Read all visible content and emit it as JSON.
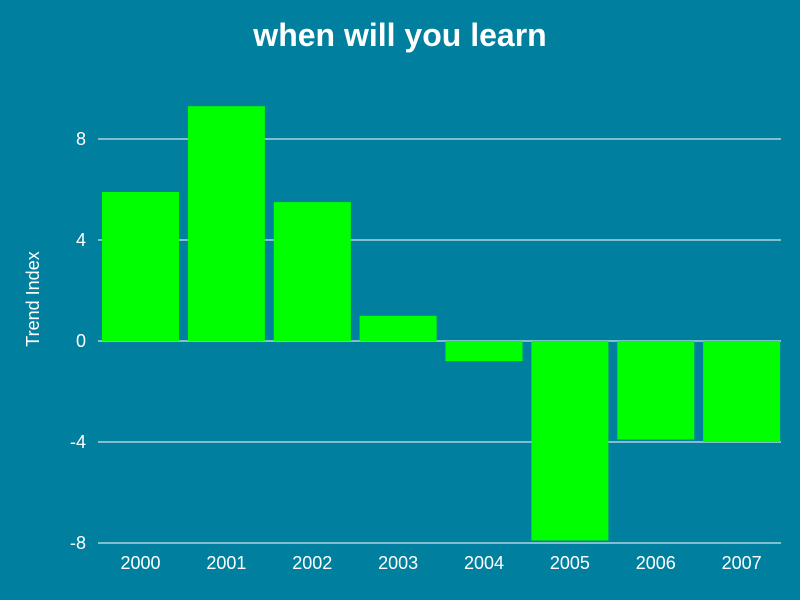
{
  "chart_data": {
    "type": "bar",
    "title": "when will you learn",
    "xlabel": "",
    "ylabel": "Trend Index",
    "categories": [
      "2000",
      "2001",
      "2002",
      "2003",
      "2004",
      "2005",
      "2006",
      "2007"
    ],
    "values": [
      5.9,
      9.3,
      5.5,
      1.0,
      -0.8,
      -7.9,
      -3.9,
      -4.0
    ],
    "ylim": [
      -8,
      10
    ],
    "yticks": [
      -8,
      -4,
      0,
      4,
      8
    ],
    "ytick_labels": [
      "-8",
      "-4",
      "0",
      "4",
      "8"
    ],
    "grid": true,
    "legend": "none"
  },
  "colors": {
    "background": "#00809e",
    "bar": "#00ff00",
    "grid": "#ffffff",
    "text": "#ffffff"
  }
}
